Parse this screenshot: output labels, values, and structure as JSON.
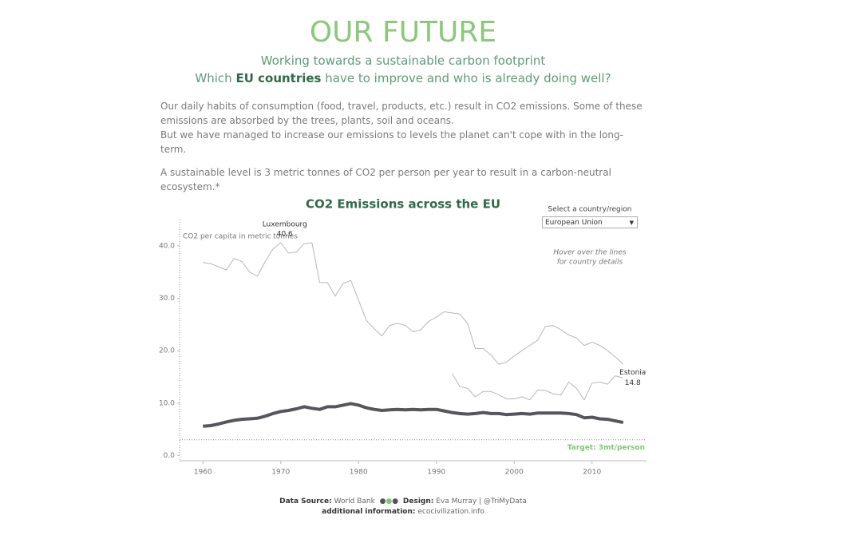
{
  "header": {
    "title": "OUR FUTURE",
    "subtitle": "Working towards a sustainable carbon footprint",
    "question_start": "Which",
    "question_bold": "EU countries",
    "question_end": "have to improve and who is already doing well?"
  },
  "intro": {
    "paragraph1_line1": "Our daily habits of consumption (food, travel, products, etc.) result in CO2 emissions. Some of these emissions are absorbed by the trees, plants, soil and oceans.",
    "paragraph1_line2": "But we have managed to increase our emissions to levels the planet can't cope with in the long-term.",
    "paragraph2": "A sustainable level is 3 metric tonnes of CO2 per person per year to result in a carbon-neutral ecosystem.*"
  },
  "controls": {
    "label": "Select a country/region",
    "selected": "European Union",
    "hint_line1": "Hover over the lines",
    "hint_line2": "for country details"
  },
  "chart_data": {
    "type": "line",
    "title": "CO2 Emissions across the EU",
    "y_label": "CO2 per capita in metric tonnes",
    "x": [
      1960,
      1961,
      1962,
      1963,
      1964,
      1965,
      1966,
      1967,
      1968,
      1969,
      1970,
      1971,
      1972,
      1973,
      1974,
      1975,
      1976,
      1977,
      1978,
      1979,
      1980,
      1981,
      1982,
      1983,
      1984,
      1985,
      1986,
      1987,
      1988,
      1989,
      1990,
      1991,
      1992,
      1993,
      1994,
      1995,
      1996,
      1997,
      1998,
      1999,
      2000,
      2001,
      2002,
      2003,
      2004,
      2005,
      2006,
      2007,
      2008,
      2009,
      2010,
      2011,
      2012,
      2013,
      2014
    ],
    "series": [
      {
        "name": "Luxembourg",
        "color": "#b8b8b8",
        "values": [
          36.8,
          36.6,
          36,
          35.4,
          37.6,
          37,
          35,
          34.2,
          37,
          39.4,
          40.6,
          38.6,
          38.8,
          40.4,
          40.6,
          33,
          33,
          30.4,
          32.8,
          33.4,
          29.6,
          25.8,
          24.2,
          22.8,
          24.8,
          25.2,
          24.8,
          23.6,
          24,
          25.6,
          26.4,
          27.4,
          27.2,
          27,
          25.2,
          20.4,
          20.4,
          19.2,
          17.4,
          17.8,
          19,
          20,
          21,
          22,
          24.6,
          24.8,
          24,
          23,
          22.4,
          21,
          21.6,
          21,
          20,
          18.8,
          17.4
        ]
      },
      {
        "name": "Estonia",
        "color": "#b8b8b8",
        "values": [
          null,
          null,
          null,
          null,
          null,
          null,
          null,
          null,
          null,
          null,
          null,
          null,
          null,
          null,
          null,
          null,
          null,
          null,
          null,
          null,
          null,
          null,
          null,
          null,
          null,
          null,
          null,
          null,
          null,
          null,
          null,
          null,
          15.6,
          13.2,
          12.8,
          11.2,
          12.2,
          12.2,
          11.6,
          10.8,
          10.8,
          11.2,
          10.6,
          12.5,
          12.4,
          11.8,
          11.5,
          14,
          12.8,
          10.6,
          13.8,
          14,
          13.6,
          15.2,
          14.8
        ]
      },
      {
        "name": "European Union",
        "color": "#55555c",
        "values": [
          5.6,
          5.7,
          6,
          6.4,
          6.7,
          6.9,
          7,
          7.1,
          7.5,
          8,
          8.4,
          8.6,
          8.9,
          9.3,
          9,
          8.8,
          9.3,
          9.3,
          9.6,
          9.9,
          9.6,
          9.1,
          8.8,
          8.6,
          8.7,
          8.8,
          8.7,
          8.8,
          8.7,
          8.8,
          8.8,
          8.5,
          8.2,
          8,
          7.9,
          8,
          8.2,
          8,
          8,
          7.8,
          7.9,
          8,
          7.9,
          8.1,
          8.1,
          8.1,
          8.1,
          8,
          7.8,
          7.2,
          7.3,
          7,
          6.9,
          6.6,
          6.3
        ]
      }
    ],
    "xlim": [
      1957,
      2017
    ],
    "ylim": [
      -1,
      45
    ],
    "xticks": [
      1960,
      1970,
      1980,
      1990,
      2000,
      2010
    ],
    "yticks": [
      {
        "value": 0,
        "label": "0.0"
      },
      {
        "value": 10,
        "label": "10.0"
      },
      {
        "value": 20,
        "label": "20.0"
      },
      {
        "value": 30,
        "label": "30.0"
      },
      {
        "value": 40,
        "label": "40.0"
      }
    ],
    "target": {
      "value": 3,
      "label": "Target: 3mt/person",
      "color": "#7bc96f"
    }
  },
  "footer": {
    "source_label": "Data Source:",
    "source": "World Bank",
    "design_label": "Design:",
    "design": "Eva Murray | @TriMyData",
    "info_label": "additional information:",
    "info": "ecocivilization.info"
  }
}
